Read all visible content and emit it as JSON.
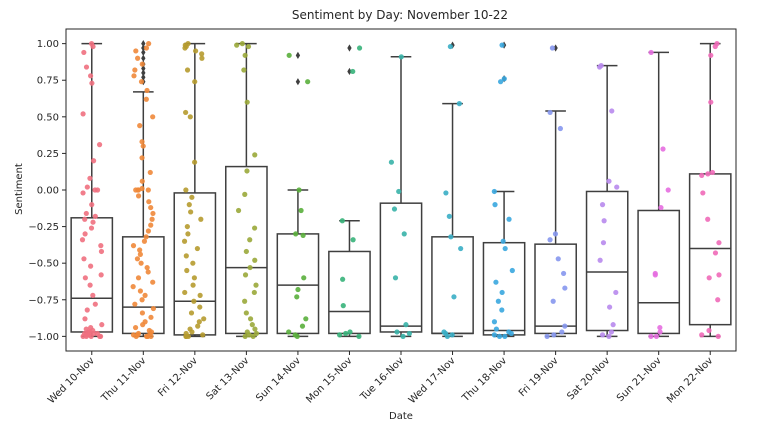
{
  "chart_data": {
    "type": "boxplot-stripplot",
    "title": "Sentiment by Day:  November 10-22",
    "xlabel": "Date",
    "ylabel": "Sentiment",
    "ylim": [
      -1.1,
      1.1
    ],
    "yticks": [
      1.0,
      0.75,
      0.5,
      0.25,
      0.0,
      -0.25,
      -0.5,
      -0.75,
      -1.0
    ],
    "ytick_labels": [
      "1.00",
      "0.75",
      "0.50",
      "0.25",
      "0.00",
      "−0.25",
      "−0.50",
      "−0.75",
      "−1.00"
    ],
    "grid": false,
    "categories": [
      "Wed 10-Nov",
      "Thu 11-Nov",
      "Fri 12-Nov",
      "Sat 13-Nov",
      "Sun 14-Nov",
      "Mon 15-Nov",
      "Tue 16-Nov",
      "Wed 17-Nov",
      "Thu 18-Nov",
      "Fri 19-Nov",
      "Sat 20-Nov",
      "Sun 21-Nov",
      "Mon 22-Nov"
    ],
    "colors": [
      "#f0707f",
      "#f0883a",
      "#b69b2f",
      "#9aa83a",
      "#5aaf3c",
      "#37b37a",
      "#38b3a8",
      "#3aaec5",
      "#3aa7df",
      "#8697ee",
      "#b889ed",
      "#e66ee0",
      "#f06ab8"
    ],
    "boxes": [
      {
        "whislo": -1.0,
        "q1": -0.97,
        "med": -0.74,
        "q3": -0.19,
        "whishi": 1.0,
        "fliers": []
      },
      {
        "whislo": -1.0,
        "q1": -0.98,
        "med": -0.8,
        "q3": -0.32,
        "whishi": 0.67,
        "fliers": [
          0.74,
          0.77,
          0.8,
          0.83,
          0.86,
          0.9,
          0.94,
          0.97,
          1.0
        ]
      },
      {
        "whislo": -1.0,
        "q1": -0.99,
        "med": -0.76,
        "q3": -0.02,
        "whishi": 1.0,
        "fliers": []
      },
      {
        "whislo": -1.0,
        "q1": -0.98,
        "med": -0.53,
        "q3": 0.16,
        "whishi": 1.0,
        "fliers": []
      },
      {
        "whislo": -1.0,
        "q1": -0.98,
        "med": -0.65,
        "q3": -0.3,
        "whishi": 0.0,
        "fliers": [
          0.74,
          0.92
        ]
      },
      {
        "whislo": -1.0,
        "q1": -0.98,
        "med": -0.83,
        "q3": -0.42,
        "whishi": -0.21,
        "fliers": [
          0.81,
          0.97
        ]
      },
      {
        "whislo": -1.0,
        "q1": -0.97,
        "med": -0.93,
        "q3": -0.09,
        "whishi": 0.91,
        "fliers": []
      },
      {
        "whislo": -1.0,
        "q1": -0.98,
        "med": -0.98,
        "q3": -0.32,
        "whishi": 0.59,
        "fliers": [
          0.99
        ]
      },
      {
        "whislo": -1.0,
        "q1": -0.99,
        "med": -0.96,
        "q3": -0.36,
        "whishi": -0.01,
        "fliers": [
          0.76,
          0.99
        ]
      },
      {
        "whislo": -1.0,
        "q1": -0.98,
        "med": -0.93,
        "q3": -0.37,
        "whishi": 0.54,
        "fliers": [
          0.97
        ]
      },
      {
        "whislo": -1.0,
        "q1": -0.96,
        "med": -0.56,
        "q3": -0.01,
        "whishi": 0.85,
        "fliers": []
      },
      {
        "whislo": -1.0,
        "q1": -0.98,
        "med": -0.77,
        "q3": -0.14,
        "whishi": 0.94,
        "fliers": []
      },
      {
        "whislo": -1.0,
        "q1": -0.92,
        "med": -0.4,
        "q3": 0.11,
        "whishi": 1.0,
        "fliers": []
      }
    ],
    "points": [
      [
        1.0,
        0.98,
        0.94,
        0.84,
        0.78,
        0.73,
        0.52,
        0.31,
        0.2,
        0.08,
        0.02,
        0.0,
        0.0,
        -0.02,
        -0.1,
        -0.16,
        -0.18,
        -0.2,
        -0.22,
        -0.26,
        -0.3,
        -0.34,
        -0.38,
        -0.42,
        -0.47,
        -0.52,
        -0.58,
        -0.6,
        -0.65,
        -0.72,
        -0.78,
        -0.82,
        -0.88,
        -0.92,
        -0.94,
        -0.95,
        -0.96,
        -0.97,
        -0.98,
        -0.98,
        -0.99,
        -0.99,
        -1.0,
        -1.0,
        -1.0,
        -1.0,
        -1.0,
        -0.99,
        -0.98,
        -0.97
      ],
      [
        1.0,
        0.97,
        0.95,
        0.9,
        0.86,
        0.82,
        0.78,
        0.74,
        0.68,
        0.62,
        0.5,
        0.44,
        0.33,
        0.3,
        0.22,
        0.12,
        0.06,
        0.01,
        0.0,
        0.0,
        0.0,
        0.0,
        -0.04,
        -0.08,
        -0.12,
        -0.16,
        -0.2,
        -0.24,
        -0.28,
        -0.32,
        -0.35,
        -0.38,
        -0.41,
        -0.44,
        -0.47,
        -0.5,
        -0.53,
        -0.56,
        -0.6,
        -0.63,
        -0.66,
        -0.69,
        -0.72,
        -0.75,
        -0.78,
        -0.81,
        -0.84,
        -0.87,
        -0.9,
        -0.92,
        -0.94,
        -0.96,
        -0.97,
        -0.98,
        -0.99,
        -1.0,
        -1.0,
        -1.0,
        -1.0,
        -1.0,
        -0.99,
        -0.98
      ],
      [
        1.0,
        0.99,
        0.98,
        0.97,
        0.95,
        0.93,
        0.9,
        0.82,
        0.74,
        0.53,
        0.5,
        0.19,
        0.0,
        -0.05,
        -0.1,
        -0.15,
        -0.2,
        -0.25,
        -0.3,
        -0.35,
        -0.4,
        -0.45,
        -0.5,
        -0.55,
        -0.6,
        -0.65,
        -0.7,
        -0.72,
        -0.76,
        -0.8,
        -0.84,
        -0.88,
        -0.9,
        -0.93,
        -0.95,
        -0.97,
        -0.98,
        -0.99,
        -1.0,
        -1.0,
        -1.0
      ],
      [
        1.0,
        0.99,
        0.98,
        0.92,
        0.82,
        0.6,
        0.24,
        0.13,
        -0.03,
        -0.14,
        -0.26,
        -0.34,
        -0.42,
        -0.48,
        -0.53,
        -0.58,
        -0.65,
        -0.7,
        -0.76,
        -0.84,
        -0.88,
        -0.92,
        -0.95,
        -0.97,
        -0.98,
        -0.99,
        -1.0,
        -1.0
      ],
      [
        0.92,
        0.74,
        0.0,
        -0.14,
        -0.3,
        -0.31,
        -0.6,
        -0.68,
        -0.73,
        -0.88,
        -0.93,
        -0.97,
        -0.99,
        -1.0
      ],
      [
        0.97,
        0.81,
        -0.21,
        -0.34,
        -0.61,
        -0.79,
        -0.97,
        -0.98,
        -0.99,
        -1.0
      ],
      [
        0.91,
        0.19,
        -0.01,
        -0.13,
        -0.3,
        -0.6,
        -0.92,
        -0.97,
        -0.98,
        -1.0
      ],
      [
        0.98,
        0.59,
        -0.02,
        -0.18,
        -0.32,
        -0.4,
        -0.73,
        -0.97,
        -0.98,
        -0.99,
        -1.0
      ],
      [
        0.99,
        0.76,
        0.74,
        -0.01,
        -0.1,
        -0.2,
        -0.35,
        -0.4,
        -0.55,
        -0.63,
        -0.7,
        -0.76,
        -0.82,
        -0.9,
        -0.95,
        -0.97,
        -0.98,
        -0.99,
        -1.0,
        -1.0
      ],
      [
        0.97,
        0.53,
        0.42,
        -0.3,
        -0.34,
        -0.47,
        -0.57,
        -0.67,
        -0.76,
        -0.93,
        -0.97,
        -0.99,
        -1.0
      ],
      [
        0.85,
        0.84,
        0.54,
        0.06,
        0.02,
        -0.1,
        -0.21,
        -0.36,
        -0.48,
        -0.7,
        -0.8,
        -0.92,
        -0.97,
        -0.99,
        -1.0
      ],
      [
        0.94,
        0.28,
        0.0,
        -0.12,
        -0.57,
        -0.58,
        -0.94,
        -0.97,
        -1.0,
        -1.0
      ],
      [
        1.0,
        0.98,
        0.92,
        0.6,
        0.12,
        0.11,
        0.1,
        -0.02,
        -0.2,
        -0.36,
        -0.43,
        -0.58,
        -0.6,
        -0.75,
        -0.96,
        -0.99,
        -1.0
      ]
    ]
  }
}
